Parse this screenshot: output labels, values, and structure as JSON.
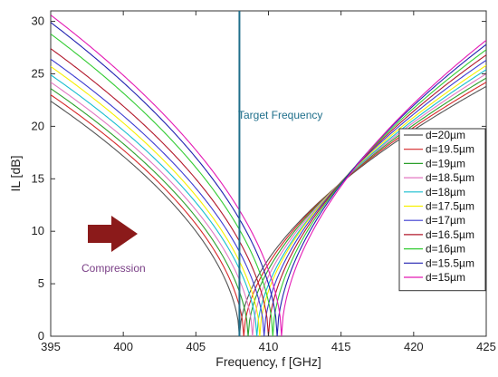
{
  "chart_data": {
    "type": "line",
    "xlabel": "Frequency, f [GHz]",
    "ylabel": "IL [dB]",
    "xlim": [
      395,
      425
    ],
    "ylim": [
      0,
      31
    ],
    "xticks": [
      395,
      400,
      405,
      410,
      415,
      420,
      425
    ],
    "yticks": [
      0,
      5,
      10,
      15,
      20,
      25,
      30
    ],
    "grid": false,
    "legend_position": "right",
    "target_frequency": 408,
    "annotations": {
      "target": {
        "text": "Target Frequency",
        "color": "#1f6f8b"
      },
      "compression": {
        "text": "Compression",
        "color": "#7a3f86",
        "arrow_color": "#8b1a1a"
      }
    },
    "series": [
      {
        "name": "d=20µm",
        "color": "#555555",
        "min_x": 408.0,
        "y_start": 22.4,
        "y_end": 23.8
      },
      {
        "name": "d=19.5µm",
        "color": "#d62728",
        "min_x": 408.3,
        "y_start": 23.0,
        "y_end": 24.2
      },
      {
        "name": "d=19µm",
        "color": "#2ca02c",
        "min_x": 408.6,
        "y_start": 23.6,
        "y_end": 24.6
      },
      {
        "name": "d=18.5µm",
        "color": "#e377c2",
        "min_x": 408.9,
        "y_start": 24.2,
        "y_end": 25.0
      },
      {
        "name": "d=18µm",
        "color": "#17becf",
        "min_x": 409.2,
        "y_start": 24.9,
        "y_end": 25.4
      },
      {
        "name": "d=17.5µm",
        "color": "#f7f000",
        "min_x": 409.4,
        "y_start": 25.7,
        "y_end": 25.8
      },
      {
        "name": "d=17µm",
        "color": "#3b3bd1",
        "min_x": 409.7,
        "y_start": 26.4,
        "y_end": 26.3
      },
      {
        "name": "d=16.5µm",
        "color": "#b2182b",
        "min_x": 410.0,
        "y_start": 27.4,
        "y_end": 26.8
      },
      {
        "name": "d=16µm",
        "color": "#33cc33",
        "min_x": 410.3,
        "y_start": 28.8,
        "y_end": 27.3
      },
      {
        "name": "d=15.5µm",
        "color": "#2020b0",
        "min_x": 410.6,
        "y_start": 29.9,
        "y_end": 27.8
      },
      {
        "name": "d=15µm",
        "color": "#e41ab4",
        "min_x": 410.9,
        "y_start": 30.6,
        "y_end": 28.2
      }
    ]
  }
}
